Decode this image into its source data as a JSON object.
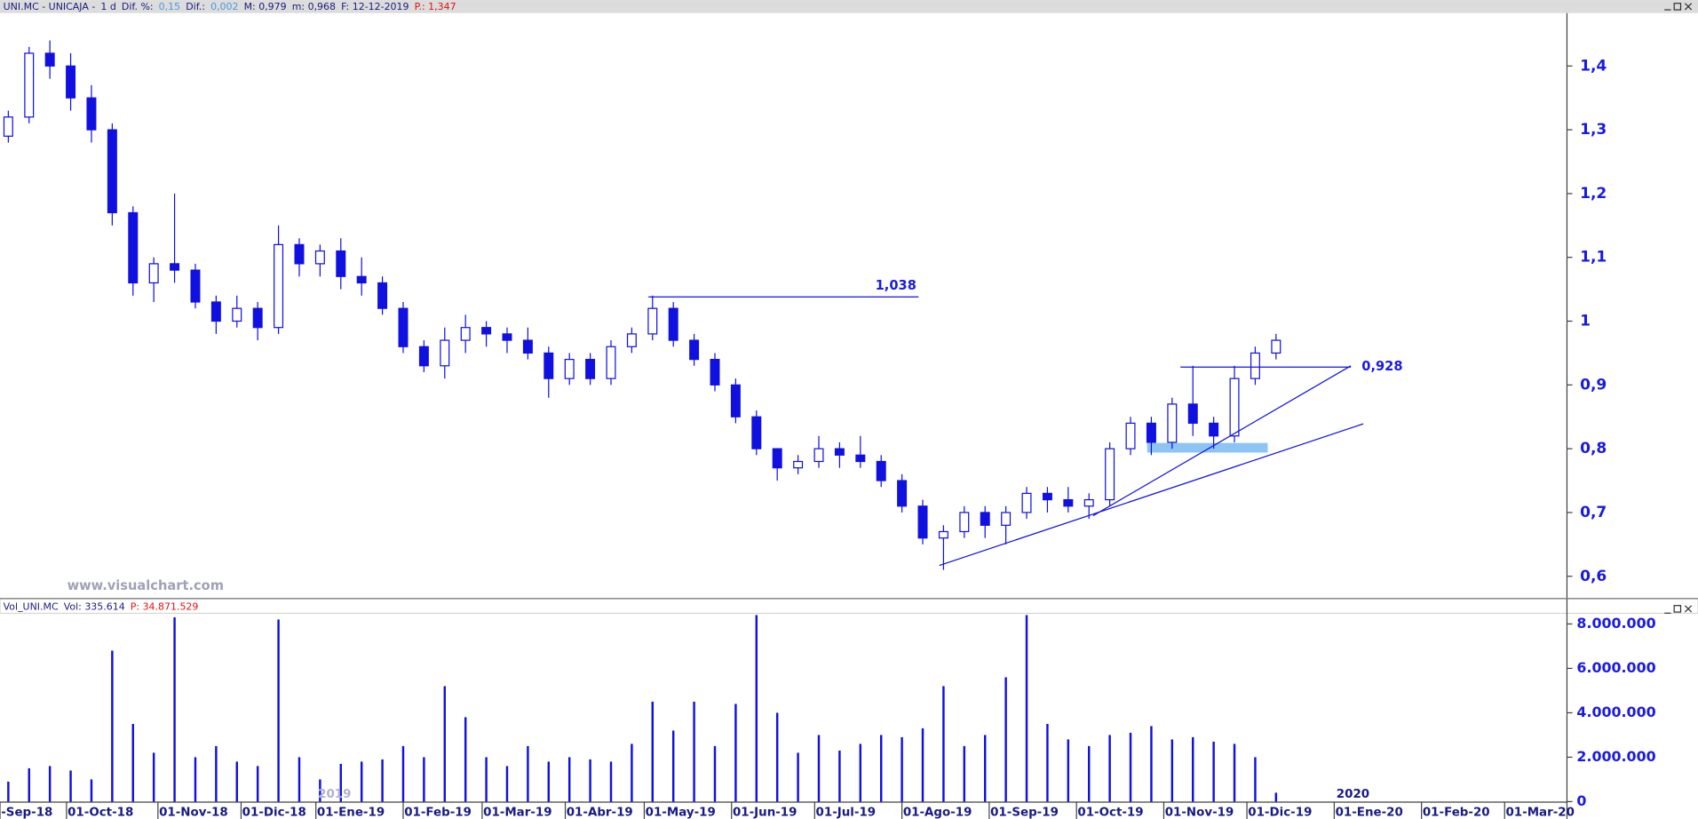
{
  "chart_data": [
    {
      "type": "candlestick",
      "header": [
        {
          "text": "UNI.MC - UNICAJA -",
          "kind": "name"
        },
        {
          "text": "1 d",
          "kind": "name"
        },
        {
          "text": "Dif. %:",
          "kind": "name"
        },
        {
          "text": "0,15",
          "kind": "value"
        },
        {
          "text": "Dif.:",
          "kind": "name"
        },
        {
          "text": "0,002",
          "kind": "value"
        },
        {
          "text": "M: 0,979",
          "kind": "name"
        },
        {
          "text": "m: 0,968",
          "kind": "name"
        },
        {
          "text": "F: 12-12-2019",
          "kind": "name"
        },
        {
          "text": "P.: 1,347",
          "kind": "alert"
        }
      ],
      "watermark": "www.visualchart.com",
      "color": "#1010e0",
      "xlim": [
        -16,
        361
      ],
      "ylim": [
        0.566,
        1.483
      ],
      "yticks": [
        {
          "value": 0.6,
          "label": "0,6"
        },
        {
          "value": 0.7,
          "label": "0,7"
        },
        {
          "value": 0.8,
          "label": "0,8"
        },
        {
          "value": 0.9,
          "label": "0,9"
        },
        1,
        {
          "value": 1.1,
          "label": "1,1"
        },
        {
          "value": 1.2,
          "label": "1,2"
        },
        {
          "value": 1.3,
          "label": "1,3"
        },
        {
          "value": 1.4,
          "label": "1,4"
        }
      ],
      "x": [
        -14,
        -9,
        -4,
        1,
        6,
        11,
        16,
        21,
        26,
        31,
        36,
        41,
        46,
        51,
        56,
        61,
        66,
        71,
        76,
        81,
        86,
        91,
        96,
        101,
        106,
        111,
        116,
        121,
        126,
        131,
        136,
        141,
        146,
        151,
        156,
        161,
        166,
        171,
        176,
        181,
        186,
        191,
        196,
        201,
        206,
        211,
        216,
        221,
        226,
        231,
        236,
        241,
        246,
        251,
        256,
        261,
        266,
        271,
        276,
        281,
        286,
        291
      ],
      "open": [
        1.29,
        1.32,
        1.42,
        1.4,
        1.35,
        1.3,
        1.17,
        1.06,
        1.09,
        1.08,
        1.03,
        1.0,
        1.02,
        0.99,
        1.12,
        1.09,
        1.11,
        1.07,
        1.06,
        1.02,
        0.96,
        0.93,
        0.97,
        0.99,
        0.98,
        0.97,
        0.95,
        0.91,
        0.94,
        0.91,
        0.96,
        0.98,
        1.02,
        0.97,
        0.94,
        0.9,
        0.85,
        0.8,
        0.77,
        0.78,
        0.8,
        0.79,
        0.78,
        0.75,
        0.71,
        0.66,
        0.67,
        0.7,
        0.68,
        0.7,
        0.73,
        0.72,
        0.71,
        0.72,
        0.8,
        0.84,
        0.81,
        0.87,
        0.84,
        0.82,
        0.91,
        0.95
      ],
      "high": [
        1.33,
        1.43,
        1.44,
        1.42,
        1.37,
        1.31,
        1.18,
        1.1,
        1.2,
        1.09,
        1.04,
        1.04,
        1.03,
        1.15,
        1.13,
        1.12,
        1.13,
        1.1,
        1.07,
        1.03,
        0.97,
        0.99,
        1.01,
        1.0,
        0.99,
        0.99,
        0.96,
        0.95,
        0.95,
        0.97,
        0.99,
        1.04,
        1.03,
        0.98,
        0.95,
        0.91,
        0.86,
        0.8,
        0.79,
        0.82,
        0.81,
        0.82,
        0.79,
        0.76,
        0.72,
        0.68,
        0.71,
        0.71,
        0.71,
        0.74,
        0.74,
        0.74,
        0.73,
        0.81,
        0.85,
        0.85,
        0.88,
        0.93,
        0.85,
        0.93,
        0.96,
        0.98
      ],
      "low": [
        1.28,
        1.31,
        1.38,
        1.33,
        1.28,
        1.15,
        1.04,
        1.03,
        1.06,
        1.02,
        0.98,
        0.99,
        0.97,
        0.98,
        1.07,
        1.07,
        1.05,
        1.04,
        1.01,
        0.95,
        0.92,
        0.91,
        0.95,
        0.96,
        0.95,
        0.94,
        0.88,
        0.9,
        0.9,
        0.9,
        0.95,
        0.97,
        0.96,
        0.93,
        0.89,
        0.84,
        0.79,
        0.75,
        0.76,
        0.77,
        0.77,
        0.77,
        0.74,
        0.7,
        0.65,
        0.61,
        0.66,
        0.66,
        0.65,
        0.69,
        0.7,
        0.7,
        0.69,
        0.71,
        0.79,
        0.79,
        0.8,
        0.82,
        0.8,
        0.81,
        0.9,
        0.94
      ],
      "close": [
        1.32,
        1.42,
        1.4,
        1.35,
        1.3,
        1.17,
        1.06,
        1.09,
        1.08,
        1.03,
        1.0,
        1.02,
        0.99,
        1.12,
        1.09,
        1.11,
        1.07,
        1.06,
        1.02,
        0.96,
        0.93,
        0.97,
        0.99,
        0.98,
        0.97,
        0.95,
        0.91,
        0.94,
        0.91,
        0.96,
        0.98,
        1.02,
        0.97,
        0.94,
        0.9,
        0.85,
        0.8,
        0.77,
        0.78,
        0.8,
        0.79,
        0.78,
        0.75,
        0.71,
        0.66,
        0.67,
        0.7,
        0.68,
        0.7,
        0.73,
        0.72,
        0.71,
        0.72,
        0.8,
        0.84,
        0.81,
        0.87,
        0.84,
        0.82,
        0.91,
        0.95,
        0.97
      ],
      "levels": [
        {
          "value": 1.038,
          "label": "1,038",
          "x": [
            140,
            205
          ]
        },
        {
          "value": 0.928,
          "label": "0,928",
          "x": [
            268,
            309
          ]
        }
      ],
      "trendlines": [
        {
          "x": [
            210,
            312
          ],
          "y": [
            0.617,
            0.839
          ]
        },
        {
          "x": [
            247,
            309
          ],
          "y": [
            0.695,
            0.93
          ]
        }
      ],
      "zone": {
        "x": [
          260,
          289
        ],
        "y": [
          0.794,
          0.809
        ],
        "color": "#8cc4f4"
      }
    },
    {
      "type": "bar",
      "header": [
        {
          "text": "Vol_UNI.MC",
          "kind": "name"
        },
        {
          "text": "Vol: 335.614",
          "kind": "name"
        },
        {
          "text": "P: 34.871.529",
          "kind": "alert"
        }
      ],
      "color": "#1010e0",
      "xlim": [
        -16,
        361
      ],
      "ylim": [
        0,
        8439000
      ],
      "yticks": [
        0,
        {
          "value": 2000000,
          "label": "2.000.000"
        },
        {
          "value": 4000000,
          "label": "4.000.000"
        },
        {
          "value": 6000000,
          "label": "6.000.000"
        },
        {
          "value": 8000000,
          "label": "8.000.000"
        }
      ],
      "xticks": [
        {
          "value": -16,
          "label": "-Sep-18"
        },
        {
          "value": 0,
          "label": "01-Oct-18"
        },
        {
          "value": 22,
          "label": "01-Nov-18"
        },
        {
          "value": 42,
          "label": "01-Dic-18"
        },
        {
          "value": 60,
          "label": "01-Ene-19"
        },
        {
          "value": 81,
          "label": "01-Feb-19"
        },
        {
          "value": 100,
          "label": "01-Mar-19"
        },
        {
          "value": 120,
          "label": "01-Abr-19"
        },
        {
          "value": 139,
          "label": "01-May-19"
        },
        {
          "value": 160,
          "label": "01-Jun-19"
        },
        {
          "value": 180,
          "label": "01-Jul-19"
        },
        {
          "value": 201,
          "label": "01-Ago-19"
        },
        {
          "value": 222,
          "label": "01-Sep-19"
        },
        {
          "value": 243,
          "label": "01-Oct-19"
        },
        {
          "value": 264,
          "label": "01-Nov-19"
        },
        {
          "value": 284,
          "label": "01-Dic-19"
        },
        {
          "value": 305,
          "label": "01-Ene-20"
        },
        {
          "value": 326,
          "label": "01-Feb-20"
        },
        {
          "value": 346,
          "label": "01-Mar-20"
        }
      ],
      "year_labels": [
        {
          "value": 60,
          "label": "2019"
        },
        {
          "value": 305,
          "label": "2020"
        }
      ],
      "x": [
        -14,
        -9,
        -4,
        1,
        6,
        11,
        16,
        21,
        26,
        31,
        36,
        41,
        46,
        51,
        56,
        61,
        66,
        71,
        76,
        81,
        86,
        91,
        96,
        101,
        106,
        111,
        116,
        121,
        126,
        131,
        136,
        141,
        146,
        151,
        156,
        161,
        166,
        171,
        176,
        181,
        186,
        191,
        196,
        201,
        206,
        211,
        216,
        221,
        226,
        231,
        236,
        241,
        246,
        251,
        256,
        261,
        266,
        271,
        276,
        281,
        286,
        291
      ],
      "values": [
        900000,
        1500000,
        1600000,
        1400000,
        1000000,
        6800000,
        3500000,
        2200000,
        8300000,
        2000000,
        2500000,
        1800000,
        1600000,
        8200000,
        2000000,
        1000000,
        1700000,
        1800000,
        1900000,
        2500000,
        2000000,
        5200000,
        3800000,
        2000000,
        1600000,
        2500000,
        1800000,
        2000000,
        1900000,
        1800000,
        2600000,
        4500000,
        3200000,
        4500000,
        2500000,
        4400000,
        8400000,
        4000000,
        2200000,
        3000000,
        2300000,
        2600000,
        3000000,
        2900000,
        3300000,
        5200000,
        2500000,
        3000000,
        5600000,
        8400000,
        3500000,
        2800000,
        2500000,
        3000000,
        3100000,
        3400000,
        2800000,
        2900000,
        2700000,
        2600000,
        2000000,
        400000
      ]
    }
  ]
}
